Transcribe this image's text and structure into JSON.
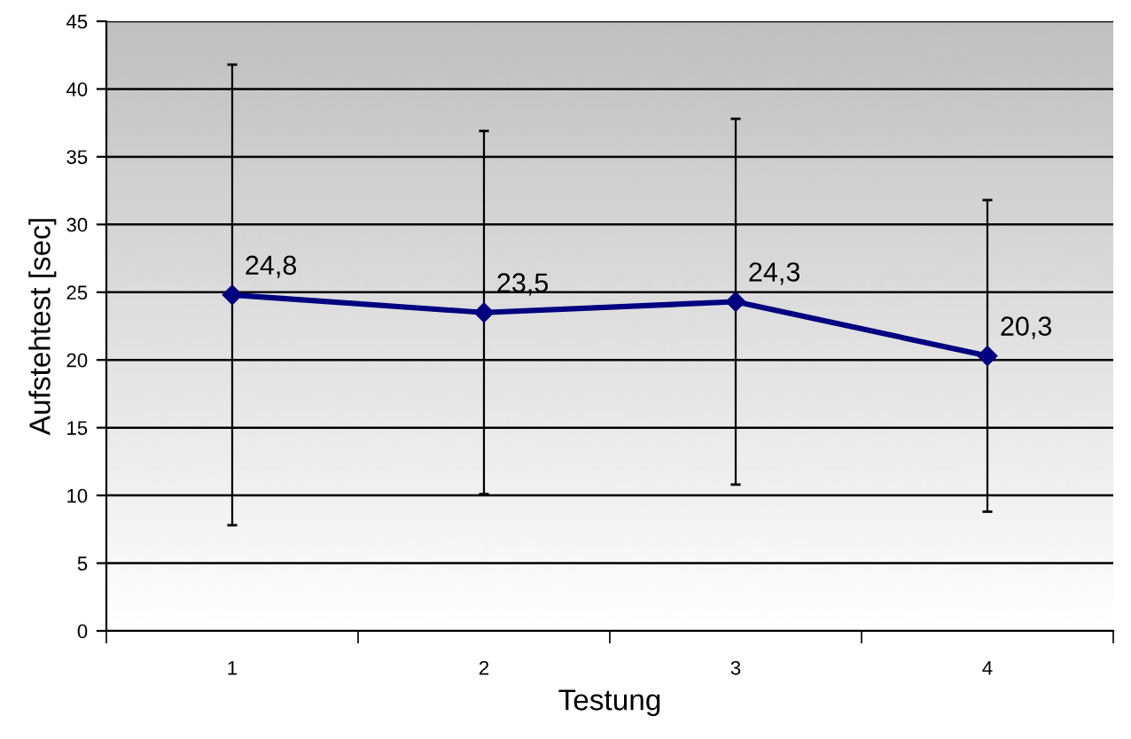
{
  "chart_data": {
    "type": "line",
    "xlabel": "Testung",
    "ylabel": "Aufstehtest [sec]",
    "categories": [
      "1",
      "2",
      "3",
      "4"
    ],
    "series": [
      {
        "color": "#000080",
        "values": [
          24.8,
          23.5,
          24.3,
          20.3
        ],
        "errors": [
          17.0,
          13.4,
          13.5,
          11.5
        ],
        "value_labels": [
          "24,8",
          "23,5",
          "24,3",
          "20,3"
        ]
      }
    ],
    "ylim": [
      0,
      45
    ],
    "yticks": [
      0,
      5,
      10,
      15,
      20,
      25,
      30,
      35,
      40,
      45
    ],
    "grid": "y",
    "marker": "diamond",
    "line_style": "solid"
  }
}
